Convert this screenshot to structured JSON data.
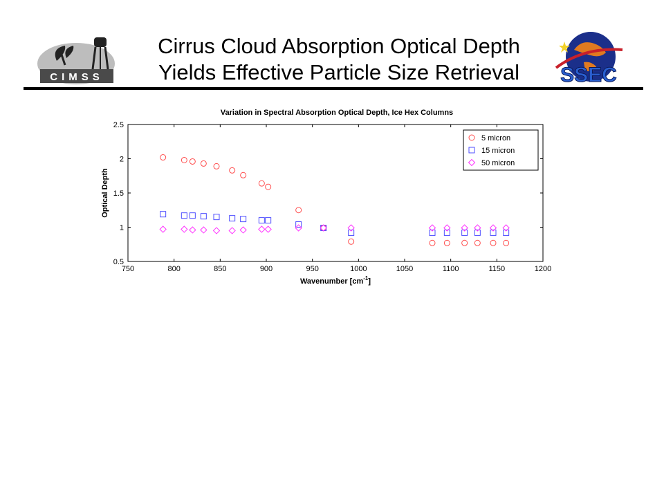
{
  "slide": {
    "title_line1": "Cirrus Cloud Absorption Optical Depth",
    "title_line2": "Yields Effective Particle Size Retrieval",
    "logo_left_text": "CIMSS",
    "logo_right_text": "SSEC"
  },
  "chart_data": {
    "type": "scatter",
    "title": "Variation in Spectral Absorption Optical Depth, Ice Hex Columns",
    "xlabel": "Wavenumber [cm",
    "xlabel_sup": "-1",
    "xlabel_end": "]",
    "ylabel": "Optical Depth",
    "xlim": [
      750,
      1200
    ],
    "ylim": [
      0.5,
      2.5
    ],
    "xticks": [
      "750",
      "800",
      "850",
      "900",
      "950",
      "1000",
      "1050",
      "1100",
      "1150",
      "1200"
    ],
    "yticks": [
      "0.5",
      "1",
      "1.5",
      "2",
      "2.5"
    ],
    "legend_position": "top-right",
    "grid": false,
    "x": [
      788,
      811,
      820,
      832,
      846,
      863,
      875,
      895,
      902,
      935,
      962,
      992,
      1080,
      1096,
      1115,
      1129,
      1146,
      1160
    ],
    "series": [
      {
        "name": "5 micron",
        "marker": "circle",
        "color": "#ff4d4d",
        "values": [
          2.02,
          1.98,
          1.96,
          1.93,
          1.89,
          1.83,
          1.76,
          1.64,
          1.59,
          1.25,
          0.99,
          0.79,
          0.77,
          0.77,
          0.77,
          0.77,
          0.77,
          0.77
        ]
      },
      {
        "name": "15 micron",
        "marker": "square",
        "color": "#4d4dff",
        "values": [
          1.19,
          1.17,
          1.17,
          1.16,
          1.15,
          1.13,
          1.12,
          1.1,
          1.1,
          1.04,
          0.99,
          0.92,
          0.92,
          0.92,
          0.92,
          0.92,
          0.92,
          0.92
        ]
      },
      {
        "name": "50 micron",
        "marker": "diamond",
        "color": "#ff33ff",
        "values": [
          0.97,
          0.97,
          0.96,
          0.96,
          0.95,
          0.95,
          0.96,
          0.97,
          0.97,
          0.99,
          0.99,
          0.99,
          0.99,
          0.99,
          0.99,
          0.99,
          0.99,
          0.99
        ]
      }
    ]
  }
}
